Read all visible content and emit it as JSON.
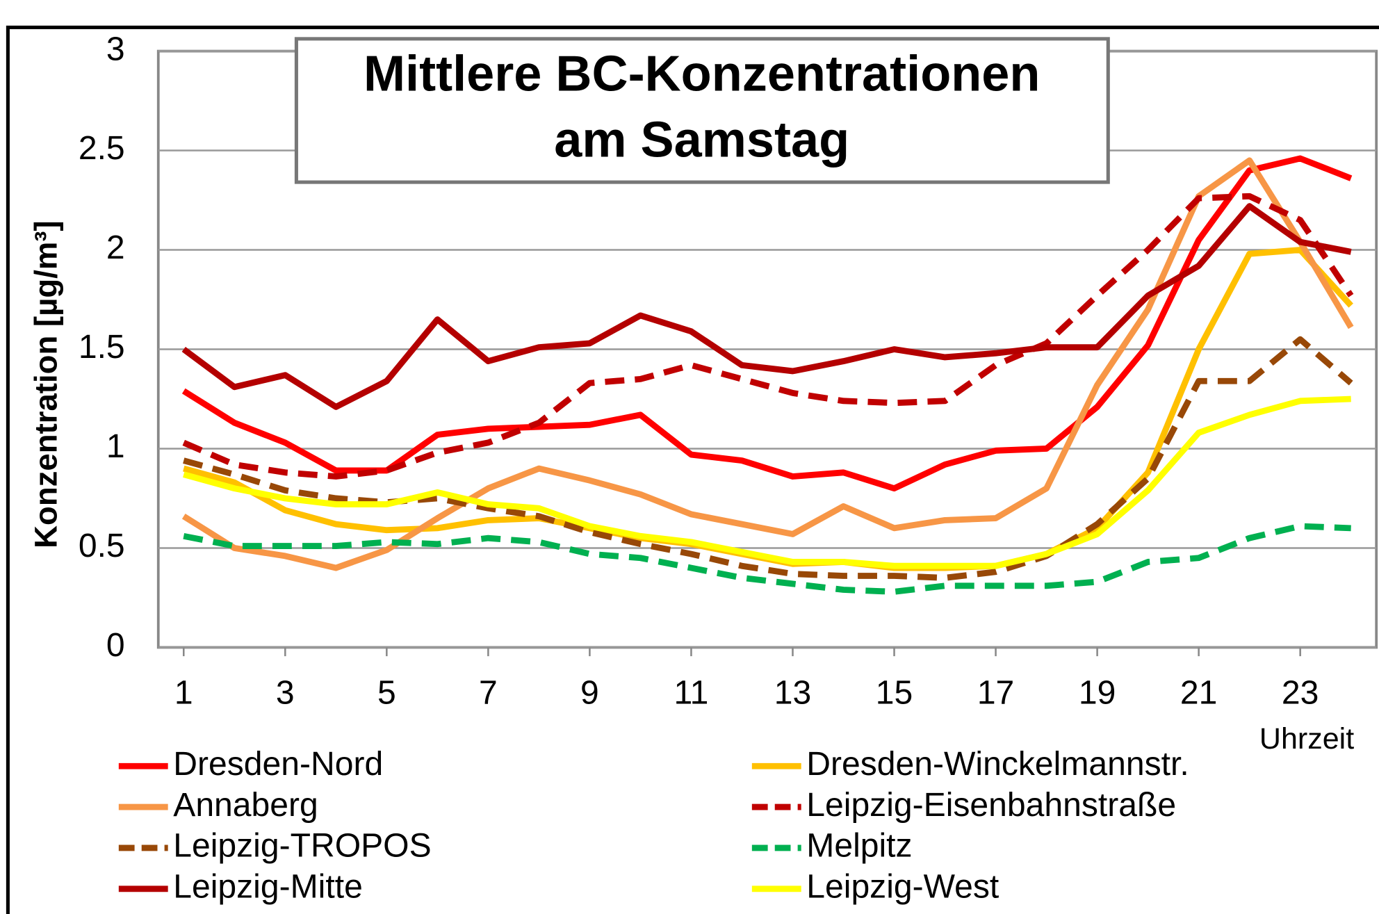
{
  "chart_data": {
    "type": "line",
    "title": [
      "Mittlere BC-Konzentrationen",
      "am Samstag"
    ],
    "y_label": "Konzentration [µg/m³]",
    "x_label": "Uhrzeit",
    "x": [
      1,
      2,
      3,
      4,
      5,
      6,
      7,
      8,
      9,
      10,
      11,
      12,
      13,
      14,
      15,
      16,
      17,
      18,
      19,
      20,
      21,
      22,
      23,
      24
    ],
    "xlim": [
      0.5,
      24.5
    ],
    "xticks": [
      1,
      3,
      5,
      7,
      9,
      11,
      13,
      15,
      17,
      19,
      21,
      23
    ],
    "ylim": [
      0,
      3
    ],
    "yticks": [
      0,
      0.5,
      1,
      1.5,
      2,
      2.5,
      3
    ],
    "grid": true,
    "legend": "bottom",
    "series": [
      {
        "name": "Dresden-Nord",
        "color": "#ff0000",
        "dashed": false,
        "values": [
          1.29,
          1.13,
          1.03,
          0.89,
          0.89,
          1.07,
          1.1,
          1.11,
          1.12,
          1.17,
          0.97,
          0.94,
          0.86,
          0.88,
          0.8,
          0.92,
          0.99,
          1.0,
          1.21,
          1.52,
          2.05,
          2.4,
          2.46,
          2.36
        ]
      },
      {
        "name": "Dresden-Winckelmannstr.",
        "color": "#ffc000",
        "dashed": false,
        "values": [
          0.9,
          0.83,
          0.69,
          0.62,
          0.59,
          0.6,
          0.64,
          0.65,
          0.6,
          0.55,
          0.52,
          0.47,
          0.42,
          0.43,
          0.4,
          0.4,
          0.41,
          0.47,
          0.6,
          0.88,
          1.5,
          1.98,
          2.0,
          1.72
        ]
      },
      {
        "name": "Annaberg",
        "color": "#f79646",
        "dashed": false,
        "values": [
          0.66,
          0.5,
          0.46,
          0.4,
          0.49,
          0.65,
          0.8,
          0.9,
          0.84,
          0.77,
          0.67,
          0.62,
          0.57,
          0.71,
          0.6,
          0.64,
          0.65,
          0.8,
          1.32,
          1.7,
          2.27,
          2.45,
          2.04,
          1.61
        ]
      },
      {
        "name": "Leipzig-Eisenbahnstraße",
        "color": "#c00000",
        "dashed": true,
        "values": [
          1.03,
          0.92,
          0.88,
          0.86,
          0.89,
          0.98,
          1.03,
          1.13,
          1.33,
          1.35,
          1.42,
          1.35,
          1.28,
          1.24,
          1.23,
          1.24,
          1.42,
          1.53,
          1.77,
          2.0,
          2.26,
          2.27,
          2.15,
          1.77
        ]
      },
      {
        "name": "Leipzig-TROPOS",
        "color": "#984807",
        "dashed": true,
        "values": [
          0.94,
          0.87,
          0.79,
          0.75,
          0.73,
          0.75,
          0.7,
          0.66,
          0.58,
          0.52,
          0.47,
          0.41,
          0.37,
          0.36,
          0.36,
          0.35,
          0.38,
          0.46,
          0.62,
          0.85,
          1.34,
          1.34,
          1.55,
          1.33
        ]
      },
      {
        "name": "Melpitz",
        "color": "#00b050",
        "dashed": true,
        "values": [
          0.56,
          0.51,
          0.51,
          0.51,
          0.53,
          0.52,
          0.55,
          0.53,
          0.47,
          0.45,
          0.4,
          0.35,
          0.32,
          0.29,
          0.28,
          0.31,
          0.31,
          0.31,
          0.33,
          0.43,
          0.45,
          0.55,
          0.61,
          0.6
        ]
      },
      {
        "name": "Leipzig-Mitte",
        "color": "#b40000",
        "dashed": false,
        "values": [
          1.5,
          1.31,
          1.37,
          1.21,
          1.34,
          1.65,
          1.44,
          1.51,
          1.53,
          1.67,
          1.59,
          1.42,
          1.39,
          1.44,
          1.5,
          1.46,
          1.48,
          1.51,
          1.51,
          1.77,
          1.92,
          2.22,
          2.04,
          1.99
        ]
      },
      {
        "name": "Leipzig-West",
        "color": "#ffff00",
        "dashed": false,
        "values": [
          0.87,
          0.8,
          0.75,
          0.72,
          0.72,
          0.78,
          0.72,
          0.7,
          0.61,
          0.56,
          0.53,
          0.48,
          0.43,
          0.43,
          0.41,
          0.41,
          0.41,
          0.47,
          0.57,
          0.79,
          1.08,
          1.17,
          1.24,
          1.25
        ]
      }
    ]
  }
}
